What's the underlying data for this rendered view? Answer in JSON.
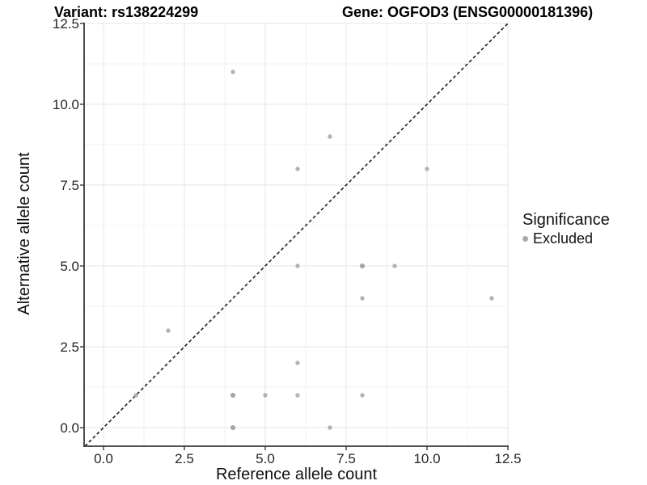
{
  "header": {
    "title_left": "Variant: rs138224299",
    "title_right": "Gene: OGFOD3 (ENSG00000181396)"
  },
  "axes": {
    "x": {
      "title": "Reference allele count",
      "tick_labels": [
        "0.0",
        "2.5",
        "5.0",
        "7.5",
        "10.0",
        "12.5"
      ]
    },
    "y": {
      "title": "Alternative allele count",
      "tick_labels": [
        "0.0",
        "2.5",
        "5.0",
        "7.5",
        "10.0",
        "12.5"
      ]
    }
  },
  "legend": {
    "title": "Significance",
    "items": [
      {
        "label": "Excluded",
        "marker_color": "#a9a9a9"
      }
    ]
  },
  "chart_data": {
    "type": "scatter",
    "title": "Variant: rs138224299 | Gene: OGFOD3 (ENSG00000181396)",
    "xlabel": "Reference allele count",
    "ylabel": "Alternative allele count",
    "xlim": [
      -0.6,
      12.55
    ],
    "ylim": [
      -0.6,
      12.55
    ],
    "x_major_ticks": [
      0,
      2.5,
      5,
      7.5,
      10,
      12.5
    ],
    "y_major_ticks": [
      0,
      2.5,
      5,
      7.5,
      10,
      12.5
    ],
    "x_minor_ticks": [
      1.25,
      3.75,
      6.25,
      8.75,
      11.25
    ],
    "y_minor_ticks": [
      1.25,
      3.75,
      6.25,
      8.75,
      11.25
    ],
    "grid": "major+minor",
    "legend_position": "right",
    "reference_line": {
      "kind": "identity y=x",
      "style": "dashed"
    },
    "series": [
      {
        "name": "Excluded",
        "marker_color": "#a0a0a0",
        "marker_opacity": 0.8,
        "points": [
          {
            "x": 1,
            "y": 1,
            "n": 1
          },
          {
            "x": 2,
            "y": 3,
            "n": 1
          },
          {
            "x": 4,
            "y": 0,
            "n": 2
          },
          {
            "x": 4,
            "y": 1,
            "n": 2
          },
          {
            "x": 4,
            "y": 11,
            "n": 1
          },
          {
            "x": 5,
            "y": 1,
            "n": 1
          },
          {
            "x": 6,
            "y": 1,
            "n": 1
          },
          {
            "x": 6,
            "y": 2,
            "n": 1
          },
          {
            "x": 6,
            "y": 5,
            "n": 1
          },
          {
            "x": 6,
            "y": 8,
            "n": 1
          },
          {
            "x": 7,
            "y": 0,
            "n": 1
          },
          {
            "x": 7,
            "y": 9,
            "n": 1
          },
          {
            "x": 8,
            "y": 1,
            "n": 1
          },
          {
            "x": 8,
            "y": 4,
            "n": 1
          },
          {
            "x": 8,
            "y": 5,
            "n": 2
          },
          {
            "x": 9,
            "y": 5,
            "n": 1
          },
          {
            "x": 10,
            "y": 8,
            "n": 1
          },
          {
            "x": 12,
            "y": 4,
            "n": 1
          }
        ]
      }
    ]
  },
  "style": {
    "background": "#ffffff",
    "grid_major": "#e4e4e4",
    "grid_minor": "#f0f0f0",
    "axis_line": "#3a3a3a",
    "tick_text": "#262626",
    "ref_line": "#000000"
  }
}
